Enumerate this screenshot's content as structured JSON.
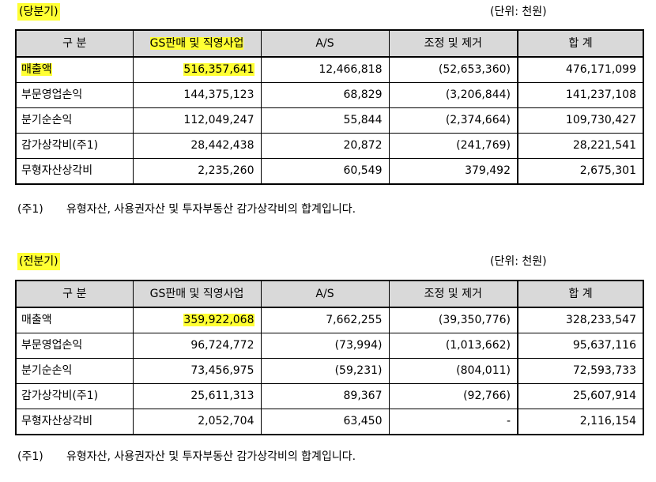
{
  "current": {
    "title": "(당분기)",
    "unit": "(단위: 천원)",
    "headers": [
      "구   분",
      "GS판매 및 직영사업",
      "A/S",
      "조정 및 제거",
      "합   계"
    ],
    "rows": [
      [
        "매출액",
        "516,357,641",
        "12,466,818",
        "(52,653,360)",
        "476,171,099"
      ],
      [
        "부문영업손익",
        "144,375,123",
        "68,829",
        "(3,206,844)",
        "141,237,108"
      ],
      [
        "분기순손익",
        "112,049,247",
        "55,844",
        "(2,374,664)",
        "109,730,427"
      ],
      [
        "감가상각비(주1)",
        "28,442,438",
        "20,872",
        "(241,769)",
        "28,221,541"
      ],
      [
        "무형자산상각비",
        "2,235,260",
        "60,549",
        "379,492",
        "2,675,301"
      ]
    ],
    "note_tag": "(주1)",
    "note_text": "유형자산, 사용권자산 및 투자부동산 감가상각비의 합계입니다."
  },
  "previous": {
    "title": "(전분기)",
    "unit": "(단위: 천원)",
    "headers": [
      "구   분",
      "GS판매 및 직영사업",
      "A/S",
      "조정 및 제거",
      "합   계"
    ],
    "rows": [
      [
        "매출액",
        "359,922,068",
        "7,662,255",
        "(39,350,776)",
        "328,233,547"
      ],
      [
        "부문영업손익",
        "96,724,772",
        "(73,994)",
        "(1,013,662)",
        "95,637,116"
      ],
      [
        "분기순손익",
        "73,456,975",
        "(59,231)",
        "(804,011)",
        "72,593,733"
      ],
      [
        "감가상각비(주1)",
        "25,611,313",
        "89,367",
        "(92,766)",
        "25,607,914"
      ],
      [
        "무형자산상각비",
        "2,052,704",
        "63,450",
        "-",
        "2,116,154"
      ]
    ],
    "note_tag": "(주1)",
    "note_text": "유형자산, 사용권자산 및 투자부동산 감가상각비의 합계입니다."
  },
  "highlight_color": "#ffff33",
  "header_bg": "#d9d9d9"
}
